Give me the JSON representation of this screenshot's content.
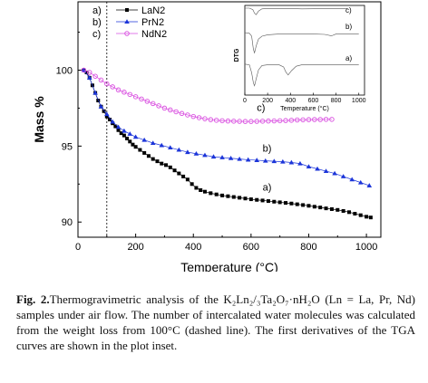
{
  "chart_data": {
    "type": "scatter",
    "xlabel": "Temperature (°C)",
    "ylabel": "Mass %",
    "xlim": [
      0,
      1050
    ],
    "ylim": [
      89,
      104.5
    ],
    "xticks": [
      "0",
      "200",
      "400",
      "600",
      "800",
      "1000"
    ],
    "yticks": [
      "90",
      "95",
      "100"
    ],
    "dashed_line_x": 100,
    "legend": {
      "placement": "top-left"
    },
    "series": [
      {
        "legend_label": "LaN2",
        "curve_label": "a)",
        "letter": "a)",
        "color": "#000000",
        "marker": "square",
        "x": [
          20,
          30,
          40,
          50,
          60,
          70,
          80,
          90,
          100,
          110,
          120,
          130,
          140,
          150,
          160,
          170,
          180,
          190,
          200,
          215,
          230,
          245,
          260,
          275,
          290,
          305,
          320,
          335,
          350,
          365,
          380,
          395,
          410,
          425,
          440,
          460,
          480,
          500,
          520,
          540,
          560,
          580,
          600,
          620,
          640,
          660,
          680,
          700,
          720,
          740,
          760,
          780,
          800,
          820,
          840,
          860,
          880,
          900,
          920,
          940,
          960,
          980,
          1000,
          1015
        ],
        "y": [
          100,
          99.85,
          99.5,
          99.0,
          98.5,
          98.0,
          97.6,
          97.3,
          96.95,
          96.75,
          96.5,
          96.3,
          96.05,
          95.85,
          95.7,
          95.5,
          95.3,
          95.1,
          94.95,
          94.75,
          94.55,
          94.35,
          94.15,
          94.0,
          93.85,
          93.75,
          93.6,
          93.4,
          93.2,
          93.0,
          92.8,
          92.5,
          92.25,
          92.1,
          92.0,
          91.9,
          91.82,
          91.75,
          91.7,
          91.65,
          91.6,
          91.55,
          91.5,
          91.46,
          91.42,
          91.38,
          91.34,
          91.3,
          91.26,
          91.22,
          91.17,
          91.12,
          91.07,
          91.01,
          90.96,
          90.9,
          90.85,
          90.8,
          90.73,
          90.65,
          90.55,
          90.45,
          90.35,
          90.3
        ]
      },
      {
        "legend_label": "PrN2",
        "curve_label": "b)",
        "letter": "b)",
        "color": "#1c35d9",
        "marker": "triangle",
        "x": [
          20,
          40,
          60,
          80,
          100,
          120,
          140,
          160,
          180,
          200,
          230,
          260,
          290,
          320,
          350,
          380,
          410,
          440,
          470,
          500,
          530,
          560,
          590,
          620,
          650,
          680,
          710,
          740,
          770,
          800,
          830,
          860,
          890,
          920,
          950,
          980,
          1010
        ],
        "y": [
          100,
          99.5,
          98.5,
          97.6,
          97.1,
          96.6,
          96.25,
          96.0,
          95.8,
          95.6,
          95.4,
          95.2,
          95.05,
          94.9,
          94.75,
          94.6,
          94.5,
          94.4,
          94.3,
          94.25,
          94.2,
          94.15,
          94.1,
          94.07,
          94.03,
          94.0,
          93.97,
          93.92,
          93.85,
          93.65,
          93.5,
          93.35,
          93.2,
          93.0,
          92.8,
          92.6,
          92.4
        ]
      },
      {
        "legend_label": "NdN2",
        "curve_label": "c)",
        "letter": "c)",
        "color": "#d94fe0",
        "marker": "circle",
        "x": [
          20,
          40,
          60,
          80,
          100,
          120,
          140,
          160,
          180,
          200,
          220,
          240,
          260,
          280,
          300,
          320,
          340,
          360,
          380,
          400,
          420,
          440,
          460,
          480,
          500,
          520,
          540,
          560,
          580,
          600,
          620,
          640,
          660,
          680,
          700,
          720,
          740,
          760,
          780,
          800,
          820,
          840,
          860,
          880
        ],
        "y": [
          100,
          99.85,
          99.6,
          99.35,
          99.1,
          98.9,
          98.7,
          98.55,
          98.4,
          98.25,
          98.1,
          97.95,
          97.8,
          97.65,
          97.5,
          97.38,
          97.26,
          97.15,
          97.05,
          96.95,
          96.87,
          96.8,
          96.74,
          96.7,
          96.67,
          96.65,
          96.64,
          96.63,
          96.62,
          96.62,
          96.63,
          96.64,
          96.65,
          96.66,
          96.67,
          96.68,
          96.7,
          96.72,
          96.73,
          96.74,
          96.75,
          96.75,
          96.76,
          96.76
        ]
      }
    ],
    "inset": {
      "ylabel": "DTG",
      "xlabel": "Temperature (°C)",
      "xlim": [
        0,
        1050
      ],
      "xticks": [
        "0",
        "200",
        "400",
        "600",
        "800",
        "1000"
      ],
      "curves": [
        {
          "name": "c)",
          "x": [
            0,
            40,
            70,
            85,
            100,
            120,
            150,
            200,
            300,
            400,
            500,
            600,
            700,
            800,
            900
          ],
          "y": [
            0.5,
            0.5,
            0.3,
            -0.2,
            -0.4,
            0.1,
            0.4,
            0.45,
            0.45,
            0.45,
            0.4,
            0.42,
            0.45,
            0.45,
            0.45
          ]
        },
        {
          "name": "b)",
          "x": [
            0,
            40,
            60,
            75,
            85,
            100,
            120,
            150,
            200,
            300,
            400,
            500,
            600,
            700,
            760,
            800,
            900,
            1000
          ],
          "y": [
            0.5,
            0.4,
            0,
            -1.8,
            -2.3,
            -1.3,
            -0.4,
            0,
            0.2,
            0.3,
            0.3,
            0.3,
            0.3,
            0.25,
            0.05,
            0.3,
            0.3,
            0.3
          ]
        },
        {
          "name": "a)",
          "x": [
            0,
            40,
            60,
            75,
            85,
            100,
            120,
            150,
            200,
            300,
            340,
            360,
            380,
            410,
            450,
            500,
            600,
            700,
            800,
            900,
            1000
          ],
          "y": [
            0.4,
            0.3,
            -0.8,
            -2.2,
            -2.6,
            -1.6,
            -0.4,
            0.2,
            0.3,
            0.3,
            0,
            -0.7,
            -1.1,
            -0.5,
            0.1,
            0.3,
            0.3,
            0.3,
            0.3,
            0.3,
            0.3
          ]
        }
      ]
    }
  },
  "caption": {
    "label": "Fig. 2.",
    "text": "Thermogravimetric analysis of the K₂Ln₂/₃Ta₂O₇·nH₂O (Ln = La, Pr, Nd) samples under air flow. The number of intercalated water molecules was calculated from the weight loss from 100°C (dashed line). The first derivatives of the TGA curves are shown in the plot inset."
  }
}
